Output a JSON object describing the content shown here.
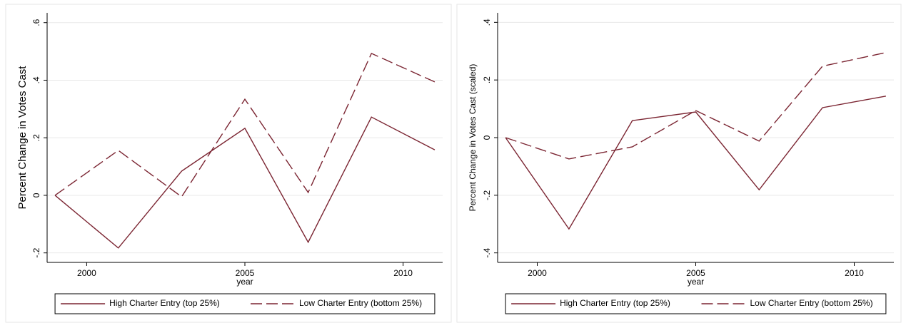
{
  "chart_data": [
    {
      "type": "line",
      "x": [
        1999,
        2001,
        2003,
        2005,
        2007,
        2009,
        2011
      ],
      "series": [
        {
          "name": "High Charter Entry (top 25%)",
          "color": "#7b2532",
          "dash": false,
          "values": [
            0,
            -0.183,
            0.084,
            0.233,
            -0.163,
            0.272,
            0.158
          ]
        },
        {
          "name": "Low Charter Entry (bottom 25%)",
          "color": "#7b2532",
          "dash": true,
          "values": [
            0,
            0.156,
            -0.005,
            0.334,
            0.01,
            0.493,
            0.394
          ]
        }
      ],
      "xlim": [
        1998.75,
        2011.25
      ],
      "ylim": [
        -0.233,
        0.634
      ],
      "xticks": [
        2000,
        2005,
        2010
      ],
      "yticks": [
        {
          "value": -0.2,
          "label": "-.2"
        },
        0,
        {
          "value": 0.2,
          "label": ".2"
        },
        {
          "value": 0.4,
          "label": ".4"
        },
        {
          "value": 0.6,
          "label": ".6"
        }
      ],
      "x_label": "year",
      "y_label": "Percent Change in Votes Cast",
      "grid": true,
      "legend": "bottom"
    },
    {
      "type": "line",
      "x": [
        1999,
        2001,
        2003,
        2005,
        2007,
        2009,
        2011
      ],
      "series": [
        {
          "name": "High Charter Entry (top 25%)",
          "color": "#7b2532",
          "dash": false,
          "values": [
            0,
            -0.317,
            0.059,
            0.089,
            -0.181,
            0.104,
            0.144
          ]
        },
        {
          "name": "Low Charter Entry (bottom 25%)",
          "color": "#7b2532",
          "dash": true,
          "values": [
            0,
            -0.074,
            -0.032,
            0.094,
            -0.012,
            0.248,
            0.295
          ]
        }
      ],
      "xlim": [
        1998.75,
        2011.25
      ],
      "ylim": [
        -0.433,
        0.433
      ],
      "xticks": [
        2000,
        2005,
        2010
      ],
      "yticks": [
        {
          "value": -0.4,
          "label": "-.4"
        },
        {
          "value": -0.2,
          "label": "-.2"
        },
        0,
        {
          "value": 0.2,
          "label": ".2"
        },
        {
          "value": 0.4,
          "label": ".4"
        }
      ],
      "x_label": "year",
      "y_label": "Percent Change in Votes Cast (scaled)",
      "grid": true,
      "legend": "bottom"
    }
  ]
}
